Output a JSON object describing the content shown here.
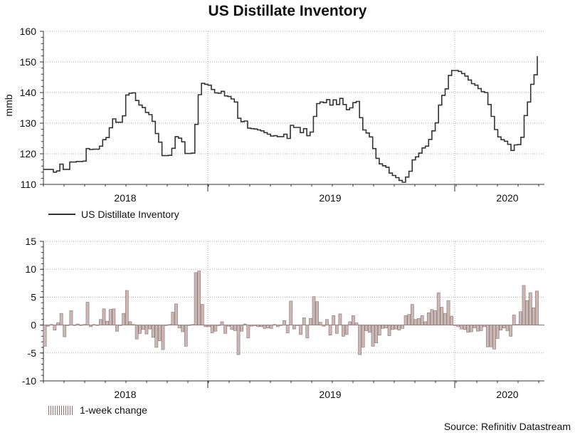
{
  "title": "US Distillate Inventory",
  "source": "Source: Refinitiv Datastream",
  "colors": {
    "line": "#333333",
    "bar": "#8c7270",
    "grid": "#aaaaaa"
  },
  "chart_data": [
    {
      "type": "line",
      "name": "US Distillate Inventory",
      "ylabel": "mmb",
      "ylim": [
        110,
        160
      ],
      "yticks": [
        110,
        120,
        130,
        140,
        150,
        160
      ],
      "xlabels": [
        "2018",
        "2019",
        "2020"
      ],
      "legend": "US Distillate Inventory",
      "values": [
        114.9,
        114.9,
        114.9,
        114,
        114.4,
        116.6,
        114.9,
        114.9,
        117.3,
        117.3,
        117.5,
        117.5,
        117.6,
        121.7,
        121.4,
        121.5,
        121.5,
        122.5,
        124.6,
        125.3,
        128.5,
        131.4,
        130.3,
        130.3,
        132.4,
        139.2,
        139.8,
        139.9,
        137.4,
        135.9,
        135.1,
        133.5,
        132.8,
        130.6,
        126.6,
        123.8,
        119.4,
        119.4,
        119.5,
        121.8,
        125.6,
        125.1,
        123.9,
        120.1,
        120.1,
        120.2,
        129.6,
        139.3,
        143,
        142.7,
        142.4,
        141,
        139.9,
        139.8,
        140.4,
        138.9,
        138.7,
        137.9,
        136.9,
        131.6,
        130.5,
        130.7,
        128.4,
        128.2,
        128.1,
        127.8,
        127.5,
        126.9,
        126.4,
        125.8,
        125.9,
        125.6,
        125.6,
        126.4,
        125,
        129.3,
        128.6,
        128.6,
        126.9,
        128.2,
        125.9,
        127.1,
        132.2,
        136.4,
        136.9,
        136.7,
        137.7,
        135.9,
        137.6,
        136.1,
        138.1,
        136.1,
        134.4,
        135,
        136.7,
        137.1,
        131.8,
        127.8,
        126.8,
        125.5,
        121.7,
        118.5,
        116.7,
        116.1,
        115.6,
        113.7,
        112.9,
        112.2,
        111.3,
        110.7,
        112.4,
        114.3,
        118,
        119,
        120.2,
        121.9,
        122.5,
        124.7,
        127.5,
        130.1,
        135.9,
        139.1,
        141.2,
        145.6,
        147.2,
        147.2,
        146.9,
        146.2,
        145.4,
        144.1,
        142.9,
        142.4,
        141.3,
        140.3,
        140,
        136.1,
        132.2,
        127.9,
        125.5,
        124.6,
        124.1,
        123.1,
        121.1,
        122.9,
        123,
        125.4,
        132.5,
        136.9,
        142.7,
        145.8,
        151.9
      ],
      "values_note": "weekly series from early 2018 through Feb 2020"
    },
    {
      "type": "bar",
      "name": "1-week change",
      "ylim": [
        -10,
        15
      ],
      "yticks": [
        -10,
        -5,
        0,
        5,
        10,
        15
      ],
      "xlabels": [
        "2018",
        "2019",
        "2020"
      ],
      "legend": "1-week change",
      "values": [
        -3.8,
        -0.2,
        0.1,
        -0.9,
        0.4,
        2.1,
        -2.1,
        0,
        2.6,
        0,
        0.2,
        0,
        0.1,
        4.1,
        -0.3,
        0.1,
        0,
        1,
        2.9,
        0.7,
        2.8,
        2.9,
        -1.1,
        0,
        2.1,
        6.2,
        0.6,
        0.1,
        -2.5,
        -1.5,
        -0.8,
        -1.6,
        -0.7,
        -2.2,
        -4,
        -2.8,
        -4.4,
        0,
        0.1,
        2.3,
        3.8,
        -0.5,
        -1.2,
        -3.8,
        0,
        0.1,
        9.4,
        9.7,
        3.7,
        -0.3,
        -0.3,
        -1.4,
        -1.1,
        -0.1,
        0.6,
        -1.5,
        -0.2,
        -0.8,
        -1,
        -5.3,
        -1.1,
        0.2,
        -2.3,
        -0.2,
        -0.1,
        -0.3,
        -0.3,
        -0.6,
        -0.5,
        -0.6,
        0.1,
        -0.3,
        0,
        0.8,
        -1.4,
        4.3,
        -0.7,
        0,
        -1.7,
        1.3,
        -2.3,
        1.2,
        5.1,
        4.2,
        0.5,
        -0.2,
        1,
        -1.8,
        1.7,
        -1.5,
        2,
        -2,
        -1.7,
        0.6,
        1.7,
        0.4,
        -5.3,
        -4,
        -1,
        -1.3,
        -3.8,
        -3.2,
        -1.8,
        -0.6,
        -0.5,
        -1.9,
        -0.8,
        -0.7,
        -0.9,
        -0.6,
        1.7,
        1.9,
        3.7,
        1,
        1.2,
        1.7,
        0.6,
        2.2,
        2.8,
        2.6,
        5.8,
        3.2,
        2.1,
        4.4,
        1.6,
        0,
        -0.3,
        -0.7,
        -0.8,
        -1.3,
        -1.2,
        -0.5,
        -1.1,
        -1,
        -0.3,
        -3.9,
        -3.9,
        -4.3,
        -2.4,
        -0.9,
        -0.5,
        -1,
        -2,
        1.8,
        0.1,
        2.4,
        7.1,
        4.4,
        5.8,
        3.1,
        6.1
      ],
      "values_note": "week-over-week change in mmb"
    }
  ]
}
